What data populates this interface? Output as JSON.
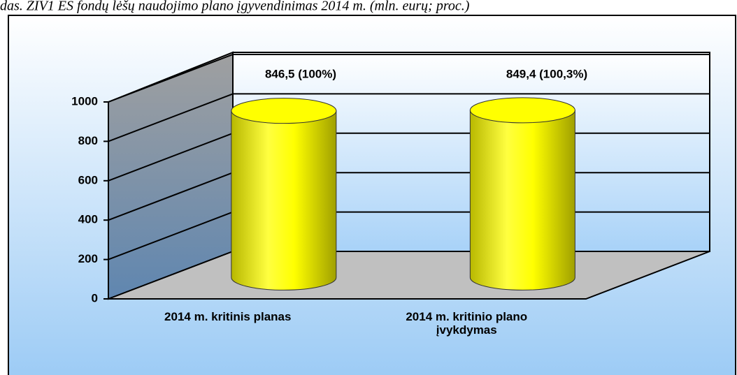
{
  "chart_data": {
    "type": "cylinder",
    "title": "das. ŽIV1 ES fondų lėšų naudojimo plano įgyvendinimas 2014 m. (mln. eurų; proc.)",
    "categories": [
      "2014 m. kritinis planas",
      "2014 m. kritinio plano įvykdymas"
    ],
    "values": [
      846.5,
      849.4
    ],
    "value_labels": [
      "846,5 (100%)",
      "849,4 (100,3%)"
    ],
    "color": "#ffff00",
    "ylim": [
      0,
      1000
    ],
    "yticks": [
      0,
      200,
      400,
      600,
      800,
      1000
    ],
    "grid": true
  }
}
